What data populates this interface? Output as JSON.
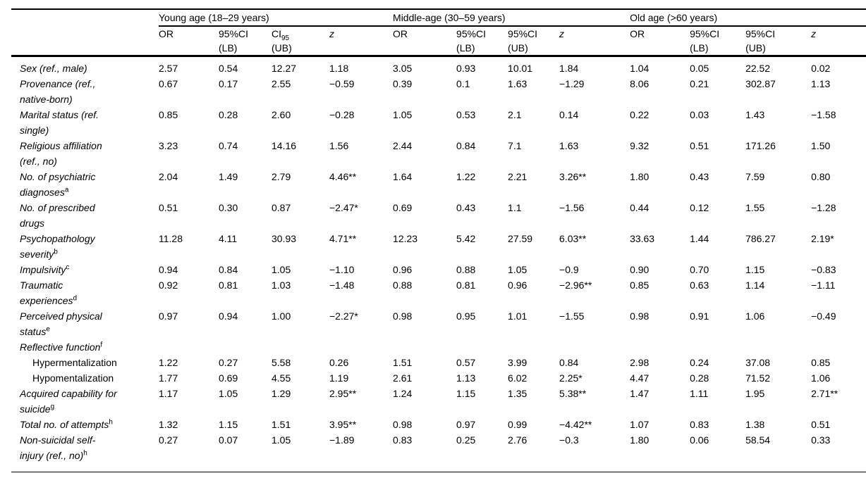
{
  "colors": {
    "text": "#000000",
    "background": "#ffffff",
    "rule": "#000000"
  },
  "table": {
    "groups": [
      {
        "label": "Young age (18–29 years)",
        "columns": [
          {
            "line1": "OR",
            "line2": ""
          },
          {
            "line1": "95%CI",
            "line2": "(LB)"
          },
          {
            "line1": "CI",
            "sub": "95",
            "line2": "(UB)"
          },
          {
            "line1": "z",
            "line2": "",
            "italic": true
          }
        ]
      },
      {
        "label": "Middle-age (30–59 years)",
        "columns": [
          {
            "line1": "OR",
            "line2": ""
          },
          {
            "line1": "95%CI",
            "line2": "(LB)"
          },
          {
            "line1": "95%CI",
            "line2": "(UB)"
          },
          {
            "line1": "z",
            "line2": "",
            "italic": true
          }
        ]
      },
      {
        "label": "Old age (>60 years)",
        "columns": [
          {
            "line1": "OR",
            "line2": ""
          },
          {
            "line1": "95%CI",
            "line2": "(LB)"
          },
          {
            "line1": "95%CI",
            "line2": "(UB)"
          },
          {
            "line1": "z",
            "line2": "",
            "italic": true
          }
        ]
      }
    ],
    "rows": [
      {
        "label": "Sex (ref., male)",
        "sup": "",
        "indent": false,
        "roman": false,
        "values": [
          "2.57",
          "0.54",
          "12.27",
          "1.18",
          "3.05",
          "0.93",
          "10.01",
          "1.84",
          "1.04",
          "0.05",
          "22.52",
          "0.02"
        ]
      },
      {
        "label": "Provenance (ref.,\nnative-born)",
        "sup": "",
        "indent": false,
        "roman": false,
        "values": [
          "0.67",
          "0.17",
          "2.55",
          "−0.59",
          "0.39",
          "0.1",
          "1.63",
          "−1.29",
          "8.06",
          "0.21",
          "302.87",
          "1.13"
        ]
      },
      {
        "label": "Marital status (ref.\nsingle)",
        "sup": "",
        "indent": false,
        "roman": false,
        "values": [
          "0.85",
          "0.28",
          "2.60",
          "−0.28",
          "1.05",
          "0.53",
          "2.1",
          "0.14",
          "0.22",
          "0.03",
          "1.43",
          "−1.58"
        ]
      },
      {
        "label": "Religious affiliation\n(ref., no)",
        "sup": "",
        "indent": false,
        "roman": false,
        "values": [
          "3.23",
          "0.74",
          "14.16",
          "1.56",
          "2.44",
          "0.84",
          "7.1",
          "1.63",
          "9.32",
          "0.51",
          "171.26",
          "1.50"
        ]
      },
      {
        "label": "No. of psychiatric\ndiagnoses",
        "sup": "a",
        "indent": false,
        "roman": false,
        "values": [
          "2.04",
          "1.49",
          "2.79",
          "4.46**",
          "1.64",
          "1.22",
          "2.21",
          "3.26**",
          "1.80",
          "0.43",
          "7.59",
          "0.80"
        ]
      },
      {
        "label": "No. of prescribed\ndrugs",
        "sup": "",
        "indent": false,
        "roman": false,
        "values": [
          "0.51",
          "0.30",
          "0.87",
          "−2.47*",
          "0.69",
          "0.43",
          "1.1",
          "−1.56",
          "0.44",
          "0.12",
          "1.55",
          "−1.28"
        ]
      },
      {
        "label": "Psychopathology\nseverity",
        "sup": "b",
        "indent": false,
        "roman": false,
        "values": [
          "11.28",
          "4.11",
          "30.93",
          "4.71**",
          "12.23",
          "5.42",
          "27.59",
          "6.03**",
          "33.63",
          "1.44",
          "786.27",
          "2.19*"
        ]
      },
      {
        "label": "Impulsivity",
        "sup": "c",
        "indent": false,
        "roman": false,
        "values": [
          "0.94",
          "0.84",
          "1.05",
          "−1.10",
          "0.96",
          "0.88",
          "1.05",
          "−0.9",
          "0.90",
          "0.70",
          "1.15",
          "−0.83"
        ]
      },
      {
        "label": "Traumatic\nexperiences",
        "sup": "d",
        "indent": false,
        "roman": false,
        "values": [
          "0.92",
          "0.81",
          "1.03",
          "−1.48",
          "0.88",
          "0.81",
          "0.96",
          "−2.96**",
          "0.85",
          "0.63",
          "1.14",
          "−1.11"
        ]
      },
      {
        "label": "Perceived physical\nstatus",
        "sup": "e",
        "indent": false,
        "roman": false,
        "values": [
          "0.97",
          "0.94",
          "1.00",
          "−2.27*",
          "0.98",
          "0.95",
          "1.01",
          "−1.55",
          "0.98",
          "0.91",
          "1.06",
          "−0.49"
        ]
      },
      {
        "label": "Reflective function",
        "sup": "f",
        "indent": false,
        "roman": false,
        "values": [
          "",
          "",
          "",
          "",
          "",
          "",
          "",
          "",
          "",
          "",
          "",
          ""
        ]
      },
      {
        "label": "Hypermentalization",
        "sup": "",
        "indent": true,
        "roman": true,
        "values": [
          "1.22",
          "0.27",
          "5.58",
          "0.26",
          "1.51",
          "0.57",
          "3.99",
          "0.84",
          "2.98",
          "0.24",
          "37.08",
          "0.85"
        ]
      },
      {
        "label": "Hypomentalization",
        "sup": "",
        "indent": true,
        "roman": true,
        "values": [
          "1.77",
          "0.69",
          "4.55",
          "1.19",
          "2.61",
          "1.13",
          "6.02",
          "2.25*",
          "4.47",
          "0.28",
          "71.52",
          "1.06"
        ]
      },
      {
        "label": "Acquired capability for\nsuicide",
        "sup": "g",
        "indent": false,
        "roman": false,
        "values": [
          "1.17",
          "1.05",
          "1.29",
          "2.95**",
          "1.24",
          "1.15",
          "1.35",
          "5.38**",
          "1.47",
          "1.11",
          "1.95",
          "2.71**"
        ]
      },
      {
        "label": "Total no. of attempts",
        "sup": "h",
        "indent": false,
        "roman": false,
        "values": [
          "1.32",
          "1.15",
          "1.51",
          "3.95**",
          "0.98",
          "0.97",
          "0.99",
          "−4.42**",
          "1.07",
          "0.83",
          "1.38",
          "0.51"
        ]
      },
      {
        "label": "Non-suicidal self-\ninjury (ref., no)",
        "sup": "h",
        "indent": false,
        "roman": false,
        "values": [
          "0.27",
          "0.07",
          "1.05",
          "−1.89",
          "0.83",
          "0.25",
          "2.76",
          "−0.3",
          "1.80",
          "0.06",
          "58.54",
          "0.33"
        ]
      }
    ]
  }
}
